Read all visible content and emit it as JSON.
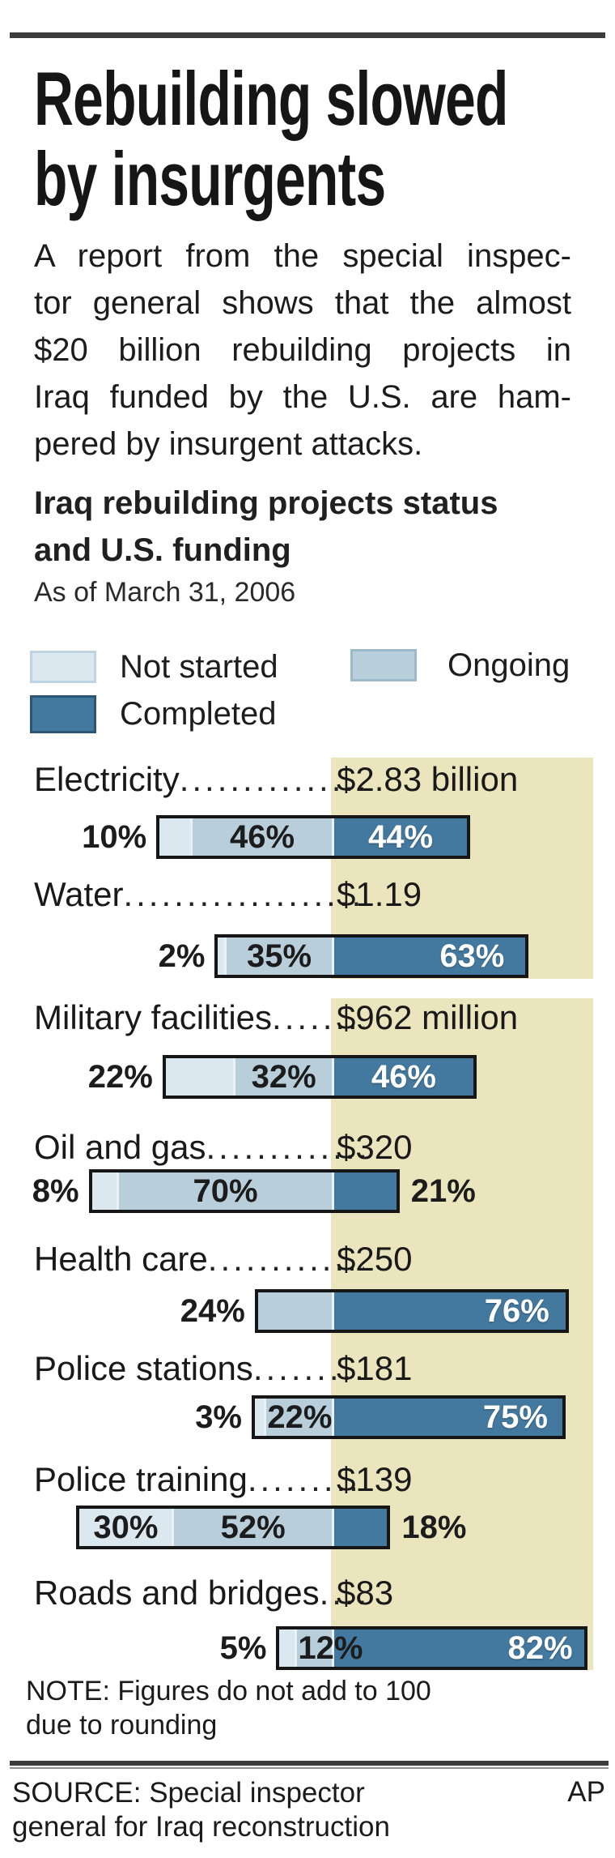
{
  "header": {
    "title_line1": "Rebuilding slowed",
    "title_line2": "by insurgents",
    "subtitle_line1": "Iraq rebuilding projects status",
    "subtitle_line2": "and U.S. funding",
    "as_of": "As of March 31, 2006"
  },
  "intro": {
    "lines": [
      "A report from the special inspec-",
      "tor general shows that the almost",
      "$20 billion rebuilding projects in",
      "Iraq funded by the U.S. are ham-",
      "pered by insurgent attacks."
    ]
  },
  "legend": {
    "not_started": "Not started",
    "ongoing": "Ongoing",
    "completed": "Completed"
  },
  "colors": {
    "not_started": "#dce8f0",
    "ongoing": "#b8cfdb",
    "completed": "#44799f",
    "beige": "#eae5bd",
    "bar_border": "#161616",
    "rule": "#3b3b3b"
  },
  "chart_data": {
    "type": "bar",
    "orientation": "horizontal",
    "stacked": true,
    "title": "Iraq rebuilding projects status and U.S. funding",
    "subtitle": "As of March 31, 2006",
    "unit": "percent of projects",
    "legend_position": "top",
    "categories": [
      "Electricity",
      "Water",
      "Military facilities",
      "Oil and gas",
      "Health care",
      "Police stations",
      "Police training",
      "Roads and bridges"
    ],
    "funding_labels": [
      "$2.83 billion",
      "$1.19",
      "$962 million",
      "$320",
      "$250",
      "$181",
      "$139",
      "$83"
    ],
    "series": [
      {
        "name": "Not started",
        "values": [
          10,
          2,
          22,
          8,
          0,
          3,
          30,
          5
        ]
      },
      {
        "name": "Ongoing",
        "values": [
          46,
          35,
          32,
          70,
          24,
          22,
          52,
          12
        ]
      },
      {
        "name": "Completed",
        "values": [
          44,
          63,
          46,
          21,
          76,
          75,
          18,
          82
        ]
      }
    ],
    "note": "Figures do not add to 100 due to rounding"
  },
  "rows": [
    {
      "name": "Electricity",
      "amount": "$2.83 billion",
      "segments": [
        {
          "kind": "not_started",
          "pct": 10,
          "label": "10%",
          "pos": "outside-left"
        },
        {
          "kind": "ongoing",
          "pct": 46,
          "label": "46%",
          "pos": "center"
        },
        {
          "kind": "completed",
          "pct": 44,
          "label": "44%",
          "pos": "center"
        }
      ]
    },
    {
      "name": "Water",
      "amount": "$1.19",
      "segments": [
        {
          "kind": "not_started",
          "pct": 2,
          "label": "2%",
          "pos": "outside-left"
        },
        {
          "kind": "ongoing",
          "pct": 35,
          "label": "35%",
          "pos": "center"
        },
        {
          "kind": "completed",
          "pct": 63,
          "label": "63%",
          "pos": "inside-right"
        }
      ]
    },
    {
      "name": "Military facilities",
      "amount": "$962 million",
      "segments": [
        {
          "kind": "not_started",
          "pct": 22,
          "label": "22%",
          "pos": "outside-left"
        },
        {
          "kind": "ongoing",
          "pct": 32,
          "label": "32%",
          "pos": "center"
        },
        {
          "kind": "completed",
          "pct": 46,
          "label": "46%",
          "pos": "center"
        }
      ]
    },
    {
      "name": "Oil and gas",
      "amount": "$320",
      "segments": [
        {
          "kind": "not_started",
          "pct": 8,
          "label": "8%",
          "pos": "outside-left"
        },
        {
          "kind": "ongoing",
          "pct": 70,
          "label": "70%",
          "pos": "center"
        },
        {
          "kind": "completed",
          "pct": 21,
          "label": "21%",
          "pos": "outside-right"
        }
      ]
    },
    {
      "name": "Health care",
      "amount": "$250",
      "segments": [
        {
          "kind": "ongoing",
          "pct": 24,
          "label": "24%",
          "pos": "outside-left"
        },
        {
          "kind": "completed",
          "pct": 76,
          "label": "76%",
          "pos": "inside-right"
        }
      ]
    },
    {
      "name": "Police stations",
      "amount": "$181",
      "segments": [
        {
          "kind": "not_started",
          "pct": 3,
          "label": "3%",
          "pos": "outside-left"
        },
        {
          "kind": "ongoing",
          "pct": 22,
          "label": "22%",
          "pos": "inside-left"
        },
        {
          "kind": "completed",
          "pct": 75,
          "label": "75%",
          "pos": "inside-right"
        }
      ]
    },
    {
      "name": "Police training",
      "amount": "$139",
      "segments": [
        {
          "kind": "not_started",
          "pct": 30,
          "label": "30%",
          "pos": "center"
        },
        {
          "kind": "ongoing",
          "pct": 52,
          "label": "52%",
          "pos": "center"
        },
        {
          "kind": "completed",
          "pct": 18,
          "label": "18%",
          "pos": "outside-right"
        }
      ]
    },
    {
      "name": "Roads and bridges",
      "amount": "$83",
      "segments": [
        {
          "kind": "not_started",
          "pct": 5,
          "label": "5%",
          "pos": "outside-left"
        },
        {
          "kind": "ongoing",
          "pct": 12,
          "label": "12%",
          "pos": "inside-left"
        },
        {
          "kind": "completed",
          "pct": 82,
          "label": "82%",
          "pos": "inside-right"
        }
      ]
    }
  ],
  "note": {
    "line1": "NOTE: Figures do not add to 100",
    "line2": "due to rounding"
  },
  "source": {
    "line1": "SOURCE: Special inspector",
    "line2": "general for Iraq reconstruction",
    "credit": "AP"
  }
}
